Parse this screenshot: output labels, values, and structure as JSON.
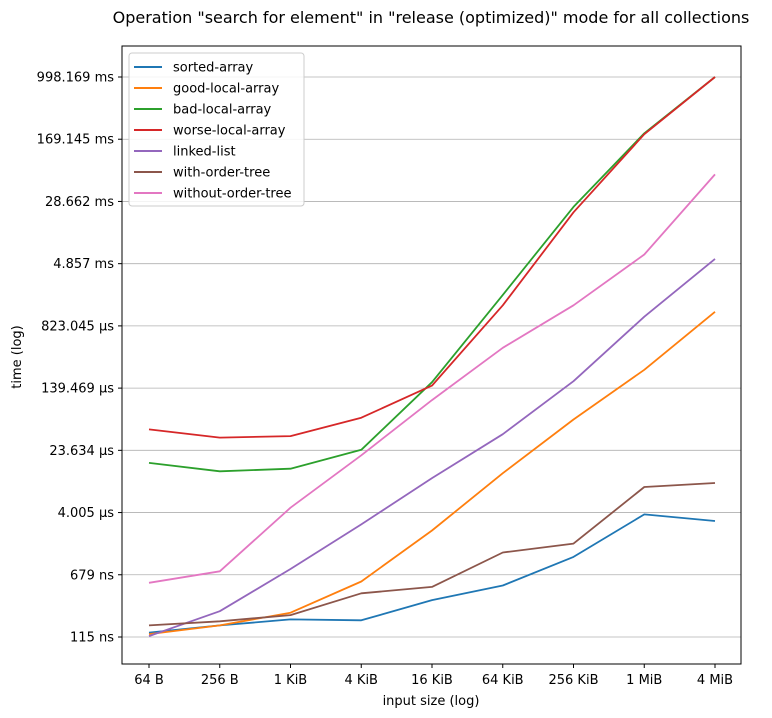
{
  "chart_data": {
    "type": "line",
    "title": "Operation \"search for element\" in \"release (optimized)\" mode for all collections",
    "xlabel": "input size (log)",
    "ylabel": "time (log)",
    "yscale": "log",
    "grid": "y",
    "legend_position": "top-left",
    "categories": [
      "64 B",
      "256 B",
      "1 KiB",
      "4 KiB",
      "16 KiB",
      "64 KiB",
      "256 KiB",
      "1 MiB",
      "4 MiB"
    ],
    "y_ticks": [
      "115 ns",
      "679 ns",
      "4.005 µs",
      "23.634 µs",
      "139.469 µs",
      "823.045 µs",
      "4.857 ms",
      "28.662 ms",
      "169.145 ms",
      "998.169 ms"
    ],
    "y_tick_values_ns": [
      115,
      679,
      4005,
      23634,
      139469,
      823045,
      4857000,
      28662000,
      169145000,
      998169000
    ],
    "y_unit": "ns",
    "series": [
      {
        "name": "sorted-array",
        "color": "#1f77b4",
        "values": [
          130,
          160,
          190,
          185,
          330,
          500,
          1130,
          3800,
          3150
        ]
      },
      {
        "name": "good-local-array",
        "color": "#ff7f0e",
        "values": [
          125,
          160,
          230,
          560,
          2400,
          12300,
          57000,
          235000,
          1230000
        ]
      },
      {
        "name": "bad-local-array",
        "color": "#2ca02c",
        "values": [
          16500,
          13000,
          14000,
          24000,
          165000,
          1990000,
          24500000,
          200000000,
          998000000
        ]
      },
      {
        "name": "worse-local-array",
        "color": "#d62728",
        "values": [
          43000,
          34000,
          35500,
          60000,
          150000,
          1480000,
          21000000,
          195000000,
          998000000
        ]
      },
      {
        "name": "linked-list",
        "color": "#9467bd",
        "values": [
          118,
          240,
          800,
          2860,
          10700,
          37500,
          170000,
          1070000,
          5560000
        ]
      },
      {
        "name": "with-order-tree",
        "color": "#8c564b",
        "values": [
          160,
          180,
          215,
          400,
          480,
          1280,
          1650,
          8300,
          9300
        ]
      },
      {
        "name": "without-order-tree",
        "color": "#e377c2",
        "values": [
          540,
          750,
          4600,
          20500,
          99000,
          440000,
          1480000,
          6300000,
          62000000
        ]
      }
    ]
  }
}
